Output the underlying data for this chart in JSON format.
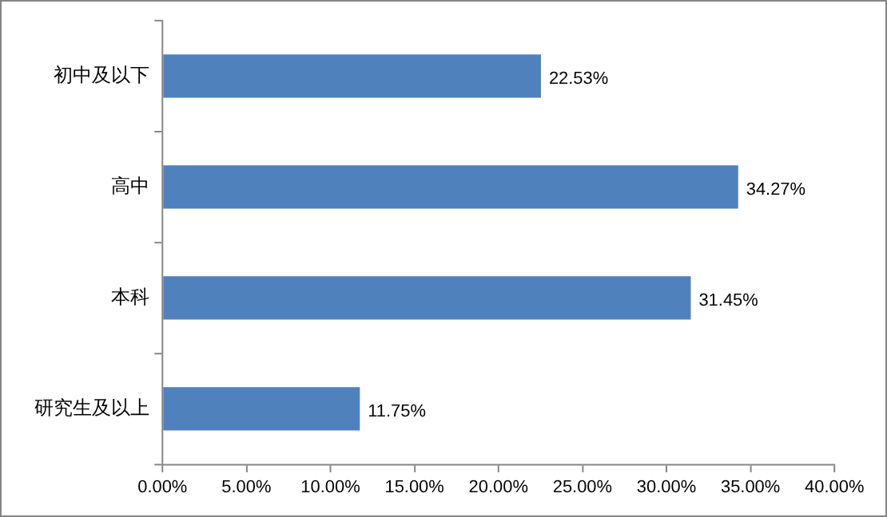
{
  "chart_data": {
    "type": "bar",
    "orientation": "horizontal",
    "categories": [
      "初中及以下",
      "高中",
      "本科",
      "研究生及以上"
    ],
    "values": [
      22.53,
      34.27,
      31.45,
      11.75
    ],
    "value_labels": [
      "22.53%",
      "34.27%",
      "31.45%",
      "11.75%"
    ],
    "color": "#4f81bd",
    "xlim": [
      0,
      40
    ],
    "xticks": [
      {
        "value": 0,
        "label": "0.00%"
      },
      {
        "value": 5,
        "label": "5.00%"
      },
      {
        "value": 10,
        "label": "10.00%"
      },
      {
        "value": 15,
        "label": "15.00%"
      },
      {
        "value": 20,
        "label": "20.00%"
      },
      {
        "value": 25,
        "label": "25.00%"
      },
      {
        "value": 30,
        "label": "30.00%"
      },
      {
        "value": 35,
        "label": "35.00%"
      },
      {
        "value": 40,
        "label": "40.00%"
      }
    ],
    "grid": false,
    "legend": false
  }
}
